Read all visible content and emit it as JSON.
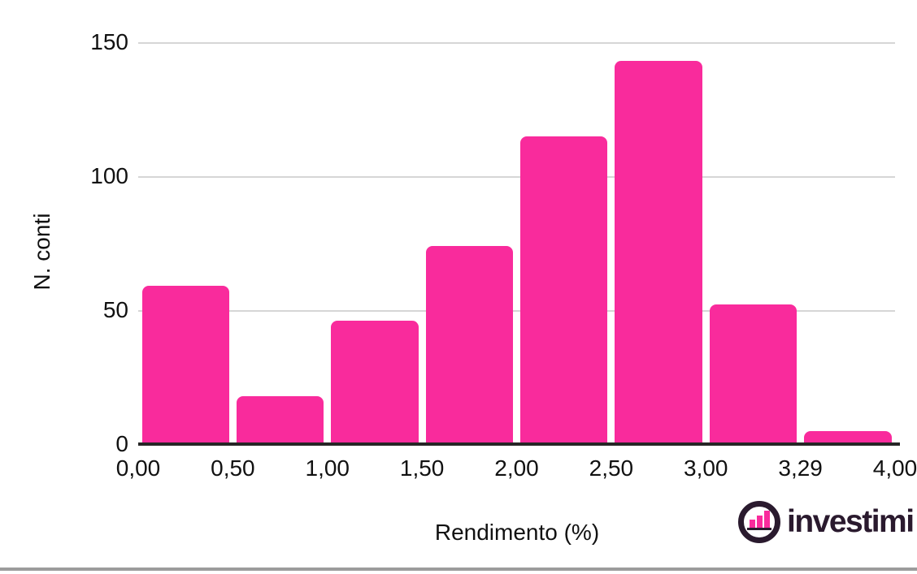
{
  "chart_data": {
    "type": "bar",
    "title": "",
    "xlabel": "Rendimento (%)",
    "ylabel": "N. conti",
    "categories": [
      "0,00-0,50",
      "0,50-1,00",
      "1,00-1,50",
      "1,50-2,00",
      "2,00-2,50",
      "2,50-3,00",
      "3,00-3,29",
      "3,29-4,00"
    ],
    "values": [
      59,
      18,
      46,
      74,
      115,
      143,
      52,
      5
    ],
    "bin_edges": [
      0.0,
      0.5,
      1.0,
      1.5,
      2.0,
      2.5,
      3.0,
      3.29,
      4.0
    ],
    "x_tick_labels": [
      "0,00",
      "0,50",
      "1,00",
      "1,50",
      "2,00",
      "2,50",
      "3,00",
      "3,29",
      "4,00"
    ],
    "y_ticks": [
      0,
      50,
      100,
      150
    ],
    "y_tick_labels": [
      "0",
      "50",
      "100",
      "150"
    ],
    "ylim": [
      0,
      150
    ],
    "bar_color": "#f92b9c",
    "grid": true,
    "legend": "none"
  },
  "branding": {
    "logo_text": "investimi",
    "logo_icon": "bar-chart-in-circle-icon"
  },
  "colors": {
    "bar_pink": "#f92b9c",
    "logo_dark": "#2a1a2e",
    "gridline": "#d6d6d6",
    "axis_line": "#262626",
    "tick_text": "#111111",
    "bottom_divider": "#9c9c9c",
    "background": "#ffffff"
  }
}
